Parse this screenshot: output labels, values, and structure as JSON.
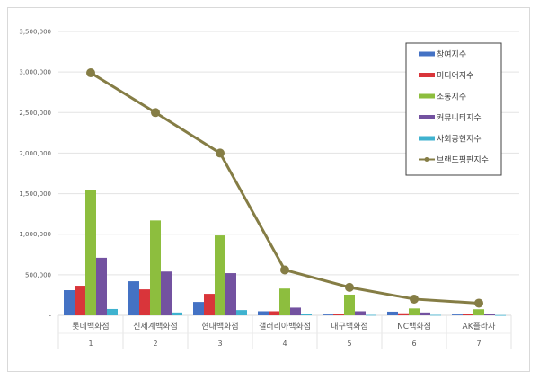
{
  "chart_data": {
    "type": "bar",
    "title": "",
    "xlabel": "",
    "ylabel": "",
    "ylim": [
      0,
      3500000
    ],
    "yticks": [
      "-",
      "500,000",
      "1,000,000",
      "1,500,000",
      "2,000,000",
      "2,500,000",
      "3,000,000",
      "3,500,000"
    ],
    "grid": true,
    "legend_position": "top-right",
    "categories": [
      "롯데백화점",
      "신세계백화점",
      "현대백화점",
      "갤러리아백화점",
      "대구백화점",
      "NC백화점",
      "AK플라자"
    ],
    "ranks": [
      "1",
      "2",
      "3",
      "4",
      "5",
      "6",
      "7"
    ],
    "series": [
      {
        "name": "참여지수",
        "type": "bar",
        "color": "#4472C4",
        "values": [
          310000,
          420000,
          165000,
          50000,
          10000,
          45000,
          10000
        ]
      },
      {
        "name": "미디어지수",
        "type": "bar",
        "color": "#D9353A",
        "values": [
          365000,
          320000,
          265000,
          50000,
          20000,
          25000,
          20000
        ]
      },
      {
        "name": "소통지수",
        "type": "bar",
        "color": "#8DBE3E",
        "values": [
          1540000,
          1170000,
          985000,
          330000,
          255000,
          85000,
          75000
        ]
      },
      {
        "name": "커뮤니티지수",
        "type": "bar",
        "color": "#7352A0",
        "values": [
          710000,
          540000,
          520000,
          95000,
          50000,
          35000,
          20000
        ]
      },
      {
        "name": "사회공헌지수",
        "type": "bar",
        "color": "#3FB2CF",
        "values": [
          78000,
          35000,
          65000,
          15000,
          5000,
          5000,
          3000
        ]
      },
      {
        "name": "브랜드평판지수",
        "type": "line",
        "color": "#857D45",
        "values": [
          2990000,
          2500000,
          2000000,
          560000,
          345000,
          200000,
          150000
        ]
      }
    ]
  }
}
